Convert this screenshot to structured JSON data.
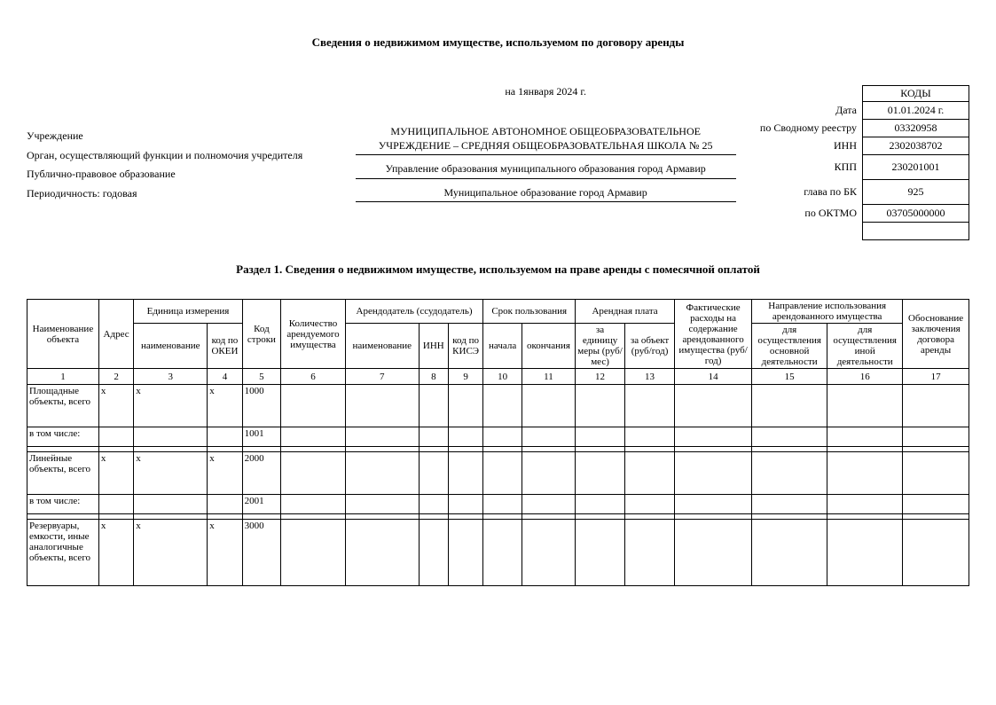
{
  "title": "Сведения о недвижимом имуществе, используемом по договору аренды",
  "dateLine": "на 1января 2024 г.",
  "leftLabels": {
    "institution": "Учреждение",
    "authority": "Орган, осуществляющий функции и полномочия учредителя",
    "publicLaw": "Публично-правовое образование",
    "periodicity": "Периодичность: годовая"
  },
  "centerValues": {
    "institutionLine1": "МУНИЦИПАЛЬНОЕ АВТОНОМНОЕ ОБЩЕОБРАЗОВАТЕЛЬНОЕ",
    "institutionLine2": "УЧРЕЖДЕНИЕ – СРЕДНЯЯ ОБЩЕОБРАЗОВАТЕЛЬНАЯ ШКОЛА № 25",
    "authority": "Управление образования муниципального образования город Армавир",
    "publicLaw": "Муниципальное образование город Армавир"
  },
  "codes": {
    "header": "КОДЫ",
    "rows": [
      {
        "label": "Дата",
        "value": "01.01.2024 г."
      },
      {
        "label": "по Сводному реестру",
        "value": "03320958"
      },
      {
        "label": "ИНН",
        "value": "2302038702"
      },
      {
        "label": "КПП",
        "value": "230201001"
      },
      {
        "label": "глава по БК",
        "value": "925"
      },
      {
        "label": "по ОКТМО",
        "value": "03705000000"
      }
    ],
    "emptyTail": ""
  },
  "sectionTitle": "Раздел 1. Сведения о недвижимом имуществе, используемом на праве аренды с помесячной оплатой",
  "tableHead": {
    "c1": "Наименование объекта",
    "c2": "Адрес",
    "c3": "Единица измерения",
    "c3a": "наименование",
    "c3b": "код по ОКЕИ",
    "c5": "Код строки",
    "c6": "Количество арендуемого имущества",
    "c7g": "Арендодатель (ссудодатель)",
    "c7a": "наименование",
    "c7b": "ИНН",
    "c7c": "код по КИСЭ",
    "c10g": "Срок пользования",
    "c10a": "начала",
    "c10b": "окончания",
    "c12g": "Арендная плата",
    "c12a": "за единицу меры (руб/мес)",
    "c12b": "за объект (руб/год)",
    "c14": "Фактические расходы на содержание арендованного имущества (руб/год)",
    "c15g": "Направление использования арендованного имущества",
    "c15a": "для осуществления основной деятельности",
    "c15b": "для осуществления иной деятельности",
    "c17": "Обоснование заключения договора аренды"
  },
  "numRow": [
    "1",
    "2",
    "3",
    "4",
    "5",
    "6",
    "7",
    "8",
    "9",
    "10",
    "11",
    "12",
    "13",
    "14",
    "15",
    "16",
    "17"
  ],
  "rows": [
    {
      "name": "Площадные объекты, всего",
      "x": "x",
      "code": "1000",
      "cls": "tall"
    },
    {
      "name": "в том числе:",
      "x": "",
      "code": "1001",
      "cls": ""
    },
    {
      "spacer": true
    },
    {
      "name": "Линейные объекты, всего",
      "x": "x",
      "code": "2000",
      "cls": "tall"
    },
    {
      "name": "в том числе:",
      "x": "",
      "code": "2001",
      "cls": ""
    },
    {
      "spacer": true
    },
    {
      "name": "Резервуары, емкости, иные аналогичные объекты, всего",
      "x": "x",
      "code": "3000",
      "cls": "taller"
    }
  ]
}
